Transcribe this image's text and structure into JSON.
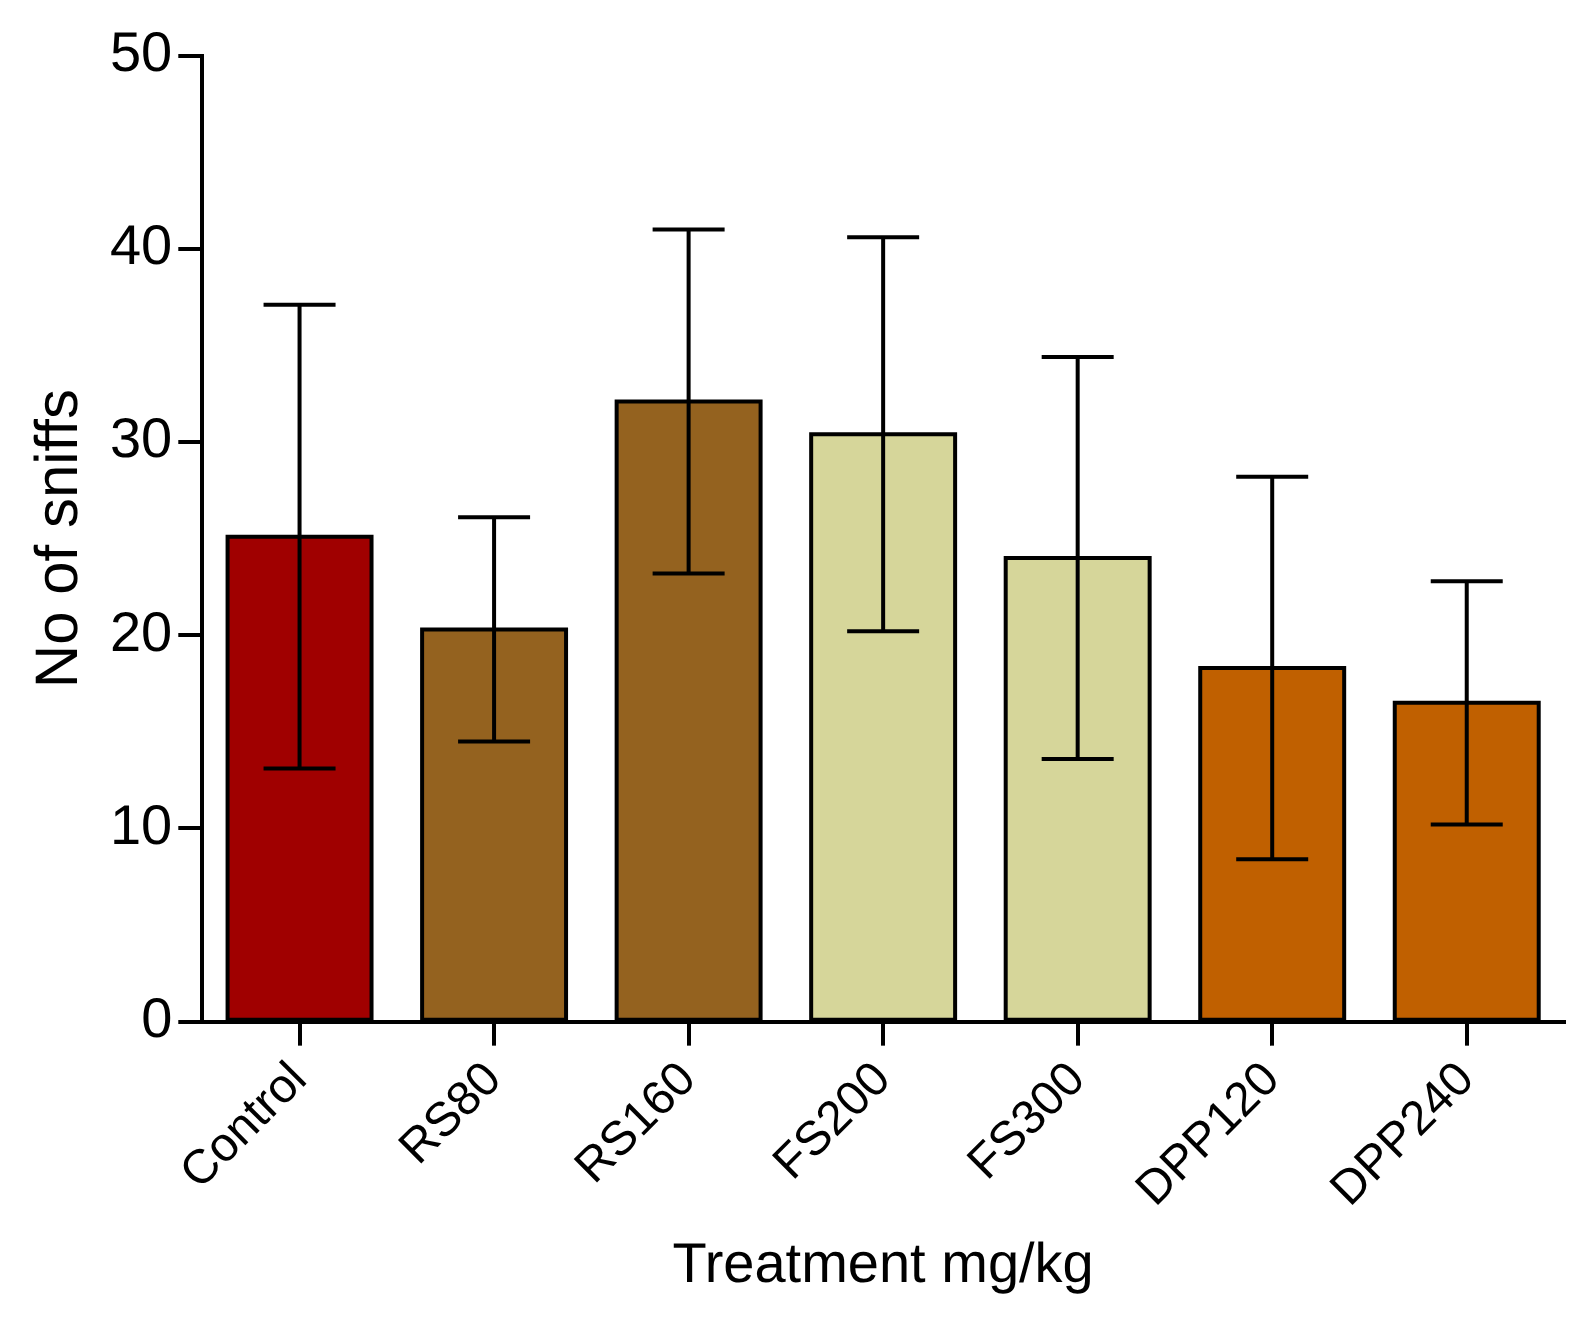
{
  "chart_data": {
    "type": "bar",
    "xlabel": "Treatment mg/kg",
    "ylabel": "No of sniffs",
    "categories": [
      "Control",
      "RS80",
      "RS160",
      "FS200",
      "FS300",
      "DPP120",
      "DPP240"
    ],
    "values": [
      25.1,
      20.3,
      32.1,
      30.4,
      24.0,
      18.3,
      16.5
    ],
    "colors": [
      "#a00000",
      "#94621f",
      "#94621f",
      "#d6d69a",
      "#d6d69a",
      "#c06000",
      "#c06000"
    ],
    "errors": [
      12.0,
      5.8,
      8.9,
      10.2,
      10.4,
      9.9,
      6.3
    ],
    "ylim": [
      0,
      50
    ],
    "yticks": [
      0,
      10,
      20,
      30,
      40,
      50
    ],
    "grid": false,
    "legend": false
  }
}
